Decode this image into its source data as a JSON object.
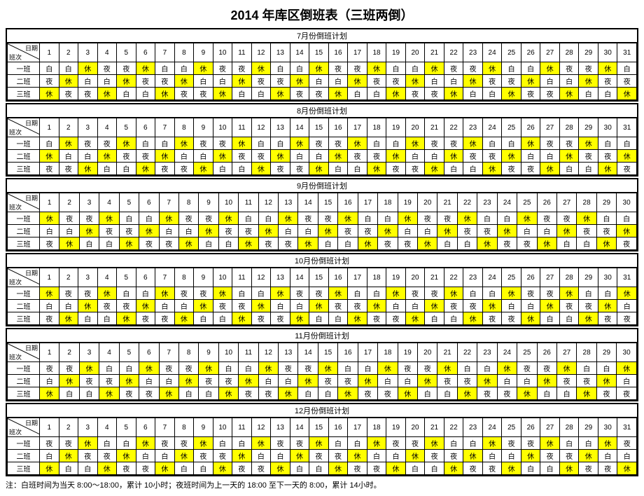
{
  "title": "2014 年库区倒班表（三班两倒）",
  "note": "注：白班时间为当天 8:00～18:00，累计 10小时；夜班时间为上一天的 18:00 至下一天的 8:00，累计 14小时。",
  "corner_top": "日期",
  "corner_bot": "班次",
  "shift_labels": [
    "一班",
    "二班",
    "三班"
  ],
  "highlight_value": "休",
  "highlight_color": "#ffff00",
  "months": [
    {
      "label": "7月份倒班计划",
      "days": 31,
      "rows": [
        [
          "白",
          "白",
          "休",
          "夜",
          "夜",
          "休",
          "白",
          "白",
          "休",
          "夜",
          "夜",
          "休",
          "白",
          "白",
          "休",
          "夜",
          "夜",
          "休",
          "白",
          "白",
          "休",
          "夜",
          "夜",
          "休",
          "白",
          "白",
          "休",
          "夜",
          "夜",
          "休",
          "白"
        ],
        [
          "夜",
          "休",
          "白",
          "白",
          "休",
          "夜",
          "夜",
          "休",
          "白",
          "白",
          "休",
          "夜",
          "夜",
          "休",
          "白",
          "白",
          "休",
          "夜",
          "夜",
          "休",
          "白",
          "白",
          "休",
          "夜",
          "夜",
          "休",
          "白",
          "白",
          "休",
          "夜",
          "夜"
        ],
        [
          "休",
          "夜",
          "夜",
          "休",
          "白",
          "白",
          "休",
          "夜",
          "夜",
          "休",
          "白",
          "白",
          "休",
          "夜",
          "夜",
          "休",
          "白",
          "白",
          "休",
          "夜",
          "夜",
          "休",
          "白",
          "白",
          "休",
          "夜",
          "夜",
          "休",
          "白",
          "白",
          "休"
        ]
      ]
    },
    {
      "label": "8月份倒班计划",
      "days": 31,
      "rows": [
        [
          "白",
          "休",
          "夜",
          "夜",
          "休",
          "白",
          "白",
          "休",
          "夜",
          "夜",
          "休",
          "白",
          "白",
          "休",
          "夜",
          "夜",
          "休",
          "白",
          "白",
          "休",
          "夜",
          "夜",
          "休",
          "白",
          "白",
          "休",
          "夜",
          "夜",
          "休",
          "白",
          "白"
        ],
        [
          "休",
          "白",
          "白",
          "休",
          "夜",
          "夜",
          "休",
          "白",
          "白",
          "休",
          "夜",
          "夜",
          "休",
          "白",
          "白",
          "休",
          "夜",
          "夜",
          "休",
          "白",
          "白",
          "休",
          "夜",
          "夜",
          "休",
          "白",
          "白",
          "休",
          "夜",
          "夜",
          "休"
        ],
        [
          "夜",
          "夜",
          "休",
          "白",
          "白",
          "休",
          "夜",
          "夜",
          "休",
          "白",
          "白",
          "休",
          "夜",
          "夜",
          "休",
          "白",
          "白",
          "休",
          "夜",
          "夜",
          "休",
          "白",
          "白",
          "休",
          "夜",
          "夜",
          "休",
          "白",
          "白",
          "休",
          "夜"
        ]
      ]
    },
    {
      "label": "9月份倒班计划",
      "days": 30,
      "rows": [
        [
          "休",
          "夜",
          "夜",
          "休",
          "白",
          "白",
          "休",
          "夜",
          "夜",
          "休",
          "白",
          "白",
          "休",
          "夜",
          "夜",
          "休",
          "白",
          "白",
          "休",
          "夜",
          "夜",
          "休",
          "白",
          "白",
          "休",
          "夜",
          "夜",
          "休",
          "白",
          "白"
        ],
        [
          "白",
          "白",
          "休",
          "夜",
          "夜",
          "休",
          "白",
          "白",
          "休",
          "夜",
          "夜",
          "休",
          "白",
          "白",
          "休",
          "夜",
          "夜",
          "休",
          "白",
          "白",
          "休",
          "夜",
          "夜",
          "休",
          "白",
          "白",
          "休",
          "夜",
          "夜",
          "休"
        ],
        [
          "夜",
          "休",
          "白",
          "白",
          "休",
          "夜",
          "夜",
          "休",
          "白",
          "白",
          "休",
          "夜",
          "夜",
          "休",
          "白",
          "白",
          "休",
          "夜",
          "夜",
          "休",
          "白",
          "白",
          "休",
          "夜",
          "夜",
          "休",
          "白",
          "白",
          "休",
          "夜"
        ]
      ]
    },
    {
      "label": "10月份倒班计划",
      "days": 31,
      "rows": [
        [
          "休",
          "夜",
          "夜",
          "休",
          "白",
          "白",
          "休",
          "夜",
          "夜",
          "休",
          "白",
          "白",
          "休",
          "夜",
          "夜",
          "休",
          "白",
          "白",
          "休",
          "夜",
          "夜",
          "休",
          "白",
          "白",
          "休",
          "夜",
          "夜",
          "休",
          "白",
          "白",
          "休"
        ],
        [
          "白",
          "白",
          "休",
          "夜",
          "夜",
          "休",
          "白",
          "白",
          "休",
          "夜",
          "夜",
          "休",
          "白",
          "白",
          "休",
          "夜",
          "夜",
          "休",
          "白",
          "白",
          "休",
          "夜",
          "夜",
          "休",
          "白",
          "白",
          "休",
          "夜",
          "夜",
          "休",
          "白"
        ],
        [
          "夜",
          "休",
          "白",
          "白",
          "休",
          "夜",
          "夜",
          "休",
          "白",
          "白",
          "休",
          "夜",
          "夜",
          "休",
          "白",
          "白",
          "休",
          "夜",
          "夜",
          "休",
          "白",
          "白",
          "休",
          "夜",
          "夜",
          "休",
          "白",
          "白",
          "休",
          "夜",
          "夜"
        ]
      ]
    },
    {
      "label": "11月份倒班计划",
      "days": 30,
      "rows": [
        [
          "夜",
          "夜",
          "休",
          "白",
          "白",
          "休",
          "夜",
          "夜",
          "休",
          "白",
          "白",
          "休",
          "夜",
          "夜",
          "休",
          "白",
          "白",
          "休",
          "夜",
          "夜",
          "休",
          "白",
          "白",
          "休",
          "夜",
          "夜",
          "休",
          "白",
          "白",
          "休"
        ],
        [
          "白",
          "休",
          "夜",
          "夜",
          "休",
          "白",
          "白",
          "休",
          "夜",
          "夜",
          "休",
          "白",
          "白",
          "休",
          "夜",
          "夜",
          "休",
          "白",
          "白",
          "休",
          "夜",
          "夜",
          "休",
          "白",
          "白",
          "休",
          "夜",
          "夜",
          "休",
          "白"
        ],
        [
          "休",
          "白",
          "白",
          "休",
          "夜",
          "夜",
          "休",
          "白",
          "白",
          "休",
          "夜",
          "夜",
          "休",
          "白",
          "白",
          "休",
          "夜",
          "夜",
          "休",
          "白",
          "白",
          "休",
          "夜",
          "夜",
          "休",
          "白",
          "白",
          "休",
          "夜",
          "夜"
        ]
      ]
    },
    {
      "label": "12月份倒班计划",
      "days": 31,
      "rows": [
        [
          "夜",
          "夜",
          "休",
          "白",
          "白",
          "休",
          "夜",
          "夜",
          "休",
          "白",
          "白",
          "休",
          "夜",
          "夜",
          "休",
          "白",
          "白",
          "休",
          "夜",
          "夜",
          "休",
          "白",
          "白",
          "休",
          "夜",
          "夜",
          "休",
          "白",
          "白",
          "休",
          "夜"
        ],
        [
          "白",
          "休",
          "夜",
          "夜",
          "休",
          "白",
          "白",
          "休",
          "夜",
          "夜",
          "休",
          "白",
          "白",
          "休",
          "夜",
          "夜",
          "休",
          "白",
          "白",
          "休",
          "夜",
          "夜",
          "休",
          "白",
          "白",
          "休",
          "夜",
          "夜",
          "休",
          "白",
          "白"
        ],
        [
          "休",
          "白",
          "白",
          "休",
          "夜",
          "夜",
          "休",
          "白",
          "白",
          "休",
          "夜",
          "夜",
          "休",
          "白",
          "白",
          "休",
          "夜",
          "夜",
          "休",
          "白",
          "白",
          "休",
          "夜",
          "夜",
          "休",
          "白",
          "白",
          "休",
          "夜",
          "夜",
          "休"
        ]
      ]
    }
  ]
}
